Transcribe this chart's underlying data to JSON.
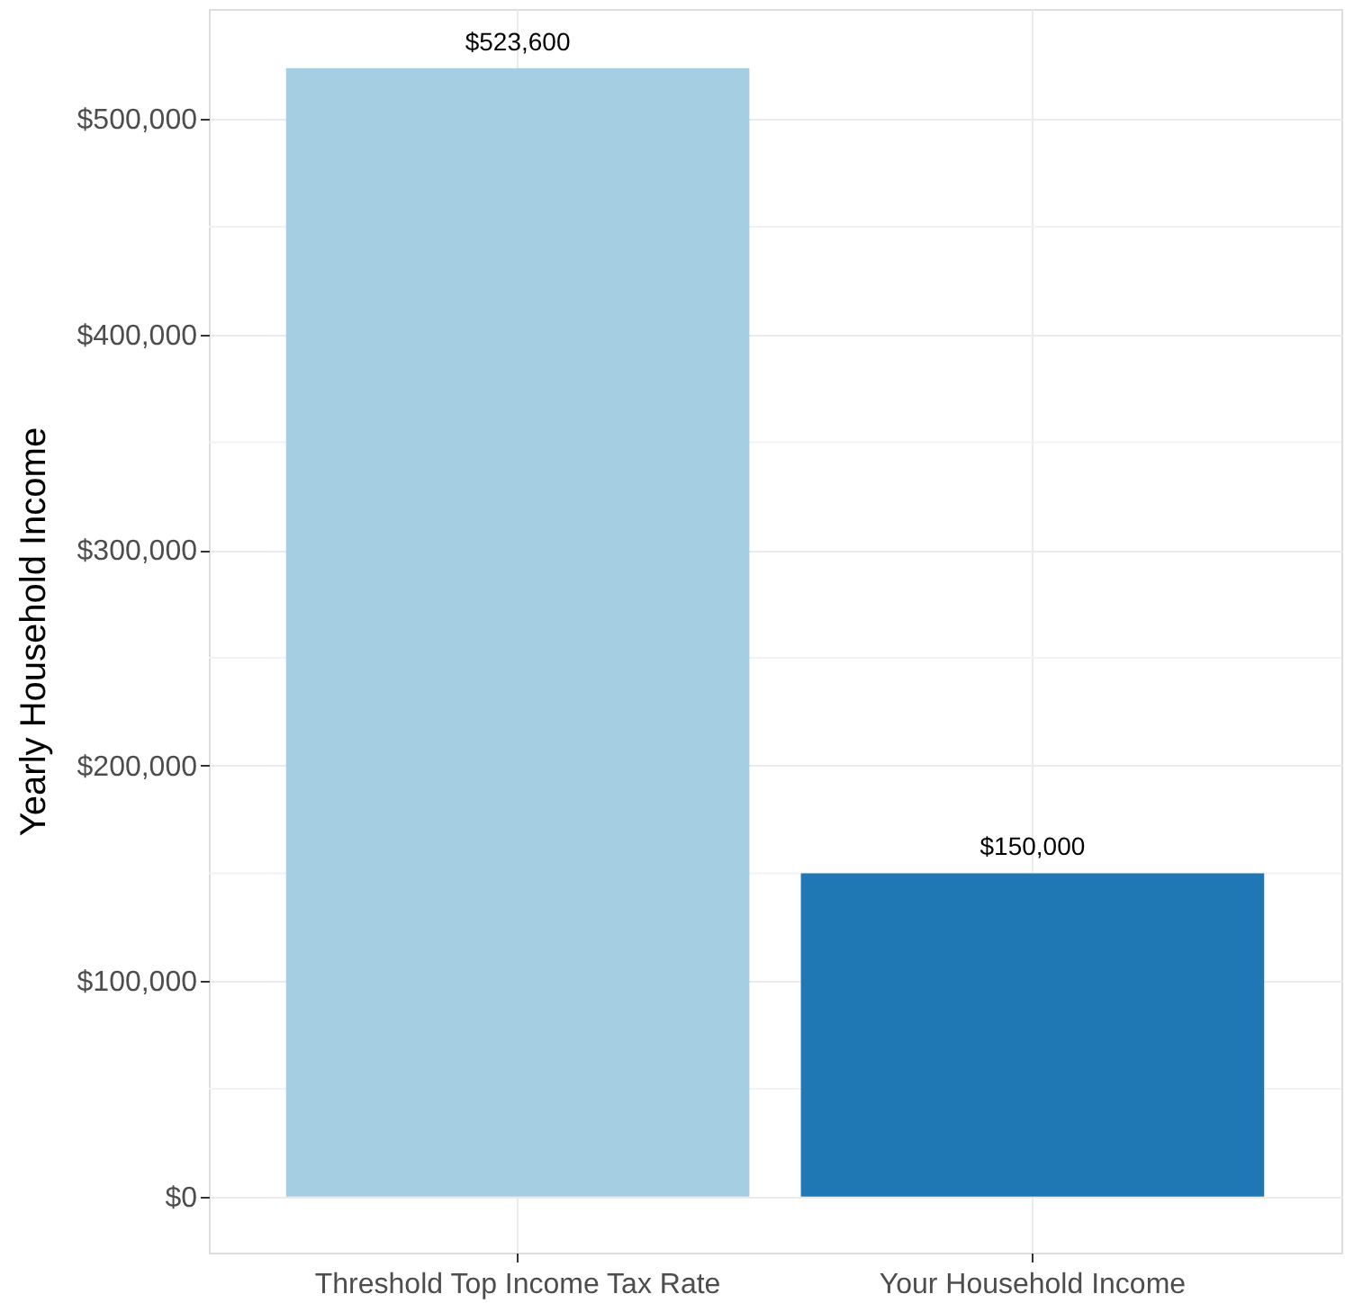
{
  "chart_data": {
    "type": "bar",
    "ylabel": "Yearly Household Income",
    "categories": [
      "Threshold Top Income Tax Rate",
      "Your Household Income"
    ],
    "values": [
      523600,
      150000
    ],
    "colors": [
      "#a6cee3",
      "#1f78b4"
    ],
    "value_labels": [
      "$523,600",
      "$150,000"
    ],
    "ylim": [
      -26000,
      551000
    ],
    "yticks": [
      {
        "value": 0,
        "label": "$0"
      },
      {
        "value": 50000,
        "label": null
      },
      {
        "value": 100000,
        "label": "$100,000"
      },
      {
        "value": 150000,
        "label": null
      },
      {
        "value": 200000,
        "label": "$200,000"
      },
      {
        "value": 250000,
        "label": null
      },
      {
        "value": 300000,
        "label": "$300,000"
      },
      {
        "value": 350000,
        "label": null
      },
      {
        "value": 400000,
        "label": "$400,000"
      },
      {
        "value": 450000,
        "label": null
      },
      {
        "value": 500000,
        "label": "$500,000"
      }
    ],
    "grid": true
  }
}
